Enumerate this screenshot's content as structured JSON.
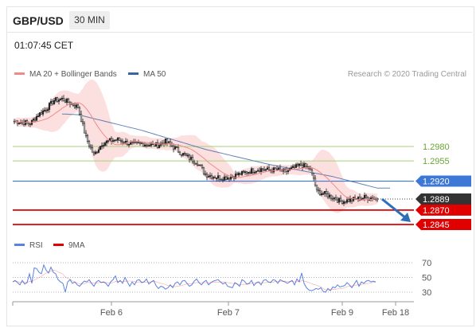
{
  "header": {
    "pair": "GBP/USD",
    "timeframe": "30 MIN",
    "time": "01:07:45 CET"
  },
  "legend": {
    "ma20": "MA 20 + Bollinger Bands",
    "ma50": "MA 50",
    "credit": "Research © 2020 Trading Central",
    "rsi": "RSI",
    "ma9": "9MA"
  },
  "colors": {
    "ma20": "#f08a8a",
    "bands": "#fbd6d6",
    "ma50": "#3a64a8",
    "green": "#a8cf78",
    "pivot": "#3e78d6",
    "support": "#e00000",
    "last": "#333333",
    "rsi": "#5a82e0",
    "arrow": "#2e6fb8"
  },
  "chart_data": [
    {
      "type": "candlestick",
      "title": "GBP/USD",
      "timeframe": "30 MIN",
      "x_ticks": [
        "Feb 6",
        "Feb 7",
        "Feb 9",
        "Feb 18"
      ],
      "y_levels": [
        {
          "label": "1.2980",
          "value": 1.298,
          "kind": "resistance"
        },
        {
          "label": "1.2955",
          "value": 1.2955,
          "kind": "resistance"
        },
        {
          "label": "1.2920",
          "value": 1.292,
          "kind": "pivot"
        },
        {
          "label": "1.2889",
          "value": 1.2889,
          "kind": "last"
        },
        {
          "label": "1.2870",
          "value": 1.287,
          "kind": "support"
        },
        {
          "label": "1.2845",
          "value": 1.2845,
          "kind": "support"
        }
      ],
      "price_path": [
        [
          0,
          1.3024
        ],
        [
          5,
          1.3022
        ],
        [
          10,
          1.302
        ],
        [
          15,
          1.3035
        ],
        [
          20,
          1.3045
        ],
        [
          25,
          1.306
        ],
        [
          30,
          1.3062
        ],
        [
          35,
          1.3055
        ],
        [
          40,
          1.3048
        ],
        [
          45,
          1.2995
        ],
        [
          50,
          1.2965
        ],
        [
          55,
          1.2985
        ],
        [
          60,
          1.299
        ],
        [
          65,
          1.2992
        ],
        [
          70,
          1.2987
        ],
        [
          75,
          1.2984
        ],
        [
          80,
          1.2985
        ],
        [
          85,
          1.2983
        ],
        [
          90,
          1.2982
        ],
        [
          95,
          1.2989
        ],
        [
          100,
          1.2979
        ],
        [
          105,
          1.2968
        ],
        [
          110,
          1.296
        ],
        [
          115,
          1.2952
        ],
        [
          120,
          1.2932
        ],
        [
          125,
          1.2928
        ],
        [
          130,
          1.2926
        ],
        [
          135,
          1.2927
        ],
        [
          140,
          1.2931
        ],
        [
          145,
          1.2935
        ],
        [
          150,
          1.2939
        ],
        [
          155,
          1.2941
        ],
        [
          160,
          1.2939
        ],
        [
          165,
          1.294
        ],
        [
          170,
          1.2936
        ],
        [
          175,
          1.2942
        ],
        [
          180,
          1.2948
        ],
        [
          185,
          1.2943
        ],
        [
          188,
          1.2925
        ],
        [
          190,
          1.2902
        ],
        [
          195,
          1.2898
        ],
        [
          200,
          1.2892
        ],
        [
          205,
          1.2885
        ],
        [
          210,
          1.2887
        ],
        [
          215,
          1.2889
        ],
        [
          220,
          1.2892
        ],
        [
          225,
          1.2891
        ],
        [
          228,
          1.2889
        ]
      ],
      "ma50_path": [
        [
          0,
          1.304
        ],
        [
          40,
          1.3035
        ],
        [
          80,
          1.3008
        ],
        [
          120,
          1.2975
        ],
        [
          160,
          1.2949
        ],
        [
          200,
          1.2928
        ],
        [
          228,
          1.2908
        ]
      ],
      "forecast": {
        "from": 1.2889,
        "to": 1.2845
      }
    },
    {
      "type": "line",
      "title": "RSI",
      "series": [
        {
          "name": "RSI"
        },
        {
          "name": "9MA"
        }
      ],
      "y_ticks": [
        70,
        50,
        30
      ],
      "ylim": [
        20,
        80
      ],
      "values": [
        44,
        46,
        43,
        40,
        46,
        41,
        43,
        55,
        42,
        63,
        62,
        57,
        55,
        67,
        60,
        56,
        64,
        57,
        55,
        47,
        44,
        42,
        30,
        44,
        47,
        42,
        44,
        40,
        38,
        42,
        45,
        44,
        47,
        42,
        38,
        44,
        46,
        43,
        44,
        42,
        38,
        44,
        47,
        52,
        43,
        46,
        42,
        50,
        44,
        38,
        44,
        40,
        46,
        47,
        43,
        44,
        48,
        41,
        44,
        46,
        39,
        35,
        38,
        37,
        34,
        36,
        40,
        36,
        42,
        44,
        40,
        45,
        46,
        42,
        38,
        40,
        45,
        48,
        43,
        40,
        44,
        46,
        40,
        43,
        45,
        46,
        47,
        44,
        41,
        43,
        38,
        37,
        36,
        43,
        41,
        38,
        47,
        45,
        41,
        42,
        46,
        39,
        43,
        44,
        40,
        46,
        47,
        44,
        43,
        47,
        46,
        42,
        47,
        45,
        44,
        42,
        44,
        46,
        40,
        48,
        44,
        56,
        42,
        36,
        33,
        32,
        33,
        35,
        34,
        36,
        31,
        30,
        35,
        32,
        37,
        36,
        40,
        37,
        38,
        39,
        43,
        40,
        36,
        41,
        46,
        38,
        44,
        42,
        45,
        46,
        44,
        45,
        44
      ]
    }
  ]
}
